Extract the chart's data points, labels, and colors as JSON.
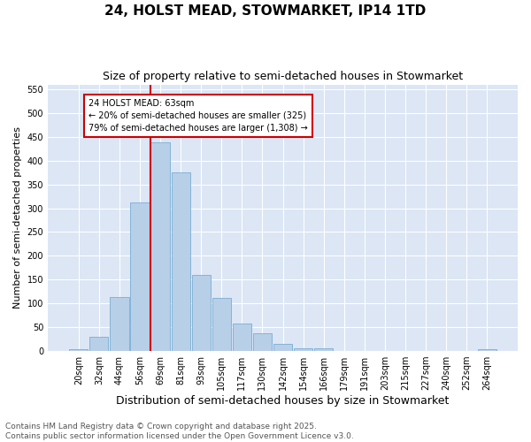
{
  "title": "24, HOLST MEAD, STOWMARKET, IP14 1TD",
  "subtitle": "Size of property relative to semi-detached houses in Stowmarket",
  "xlabel": "Distribution of semi-detached houses by size in Stowmarket",
  "ylabel": "Number of semi-detached properties",
  "bar_labels": [
    "20sqm",
    "32sqm",
    "44sqm",
    "56sqm",
    "69sqm",
    "81sqm",
    "93sqm",
    "105sqm",
    "117sqm",
    "130sqm",
    "142sqm",
    "154sqm",
    "166sqm",
    "179sqm",
    "191sqm",
    "203sqm",
    "215sqm",
    "227sqm",
    "240sqm",
    "252sqm",
    "264sqm"
  ],
  "bar_values": [
    3,
    30,
    113,
    312,
    438,
    375,
    160,
    111,
    57,
    38,
    15,
    5,
    5,
    1,
    0,
    0,
    0,
    0,
    0,
    0,
    3
  ],
  "bar_color": "#b8cfe8",
  "bar_edge_color": "#7aadd4",
  "vline_x": 3.5,
  "vline_color": "#cc0000",
  "annotation_text": "24 HOLST MEAD: 63sqm\n← 20% of semi-detached houses are smaller (325)\n79% of semi-detached houses are larger (1,308) →",
  "annotation_box_color": "#ffffff",
  "annotation_box_edge": "#cc0000",
  "ylim": [
    0,
    560
  ],
  "yticks": [
    0,
    50,
    100,
    150,
    200,
    250,
    300,
    350,
    400,
    450,
    500,
    550
  ],
  "background_color": "#dce6f5",
  "grid_color": "#ffffff",
  "footer_text": "Contains HM Land Registry data © Crown copyright and database right 2025.\nContains public sector information licensed under the Open Government Licence v3.0.",
  "title_fontsize": 11,
  "subtitle_fontsize": 9,
  "xlabel_fontsize": 9,
  "ylabel_fontsize": 8,
  "tick_fontsize": 7,
  "annotation_fontsize": 7,
  "footer_fontsize": 6.5
}
